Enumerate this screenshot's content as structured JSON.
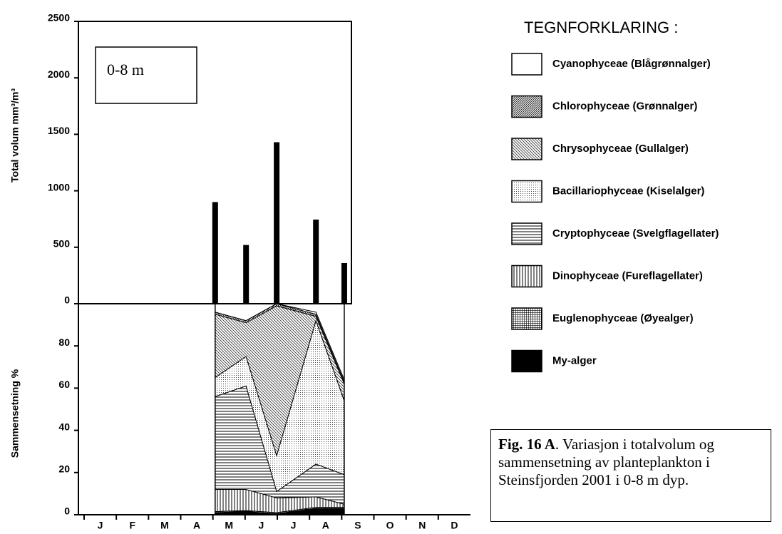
{
  "chart_data": [
    {
      "type": "bar",
      "y_label": "Total volum mm³/m³",
      "annotation": "0-8 m",
      "x": [
        4.07,
        5.03,
        5.98,
        7.2,
        8.08
      ],
      "values": [
        900,
        520,
        1430,
        745,
        360
      ],
      "color": "#000000",
      "xlim": [
        0,
        12
      ],
      "ylim": [
        0,
        2500
      ],
      "yticks": [
        0,
        500,
        1000,
        1500,
        2000,
        2500
      ]
    },
    {
      "type": "stacked_area",
      "y_label": "Sammensetning %",
      "legend_title": "TEGNFORKLARING :",
      "x": [
        4.07,
        5.03,
        5.98,
        7.2,
        8.08
      ],
      "xlim": [
        0,
        12
      ],
      "ylim": [
        0,
        100
      ],
      "yticks": [
        0,
        20,
        40,
        60,
        80
      ],
      "xticks": [
        {
          "value": 0.5,
          "label": "J"
        },
        {
          "value": 1.5,
          "label": "F"
        },
        {
          "value": 2.5,
          "label": "M"
        },
        {
          "value": 3.5,
          "label": "A"
        },
        {
          "value": 4.5,
          "label": "M"
        },
        {
          "value": 5.5,
          "label": "J"
        },
        {
          "value": 6.5,
          "label": "J"
        },
        {
          "value": 7.5,
          "label": "A"
        },
        {
          "value": 8.5,
          "label": "S"
        },
        {
          "value": 9.5,
          "label": "O"
        },
        {
          "value": 10.5,
          "label": "N"
        },
        {
          "value": 11.5,
          "label": "D"
        }
      ],
      "series": [
        {
          "name": "My-alger",
          "pattern": "solid",
          "values": [
            1,
            1.5,
            0.5,
            3,
            3
          ]
        },
        {
          "name": "Euglenophyceae (Øyealger)",
          "pattern": "grid",
          "values": [
            0.5,
            0.5,
            0.5,
            0.5,
            0.5
          ]
        },
        {
          "name": "Dinophyceae (Fureflagellater)",
          "pattern": "vert",
          "values": [
            10.5,
            10,
            7,
            5,
            1.5
          ]
        },
        {
          "name": "Cryptophyceae (Svelgflagellater)",
          "pattern": "horiz",
          "values": [
            44,
            49,
            3,
            15.5,
            14
          ]
        },
        {
          "name": "Bacillariophyceae (Kiselalger)",
          "pattern": "dots",
          "values": [
            9,
            14,
            17,
            68,
            35
          ]
        },
        {
          "name": "Chrysophyceae (Gullalger)",
          "pattern": "diag2",
          "values": [
            30,
            16,
            71,
            2,
            8
          ]
        },
        {
          "name": "Chlorophyceae (Grønnalger)",
          "pattern": "diag1",
          "values": [
            1,
            1,
            1,
            1,
            1
          ]
        },
        {
          "name": "Cyanophyceae (Blågrønnalger)",
          "pattern": "white",
          "values": [
            0,
            0,
            0,
            1,
            1
          ]
        }
      ]
    }
  ],
  "caption": {
    "bold": "Fig. 16 A",
    "text": ". Variasjon i totalvolum og sammensetning av planteplankton i Steinsfjorden 2001 i 0-8 m dyp."
  }
}
